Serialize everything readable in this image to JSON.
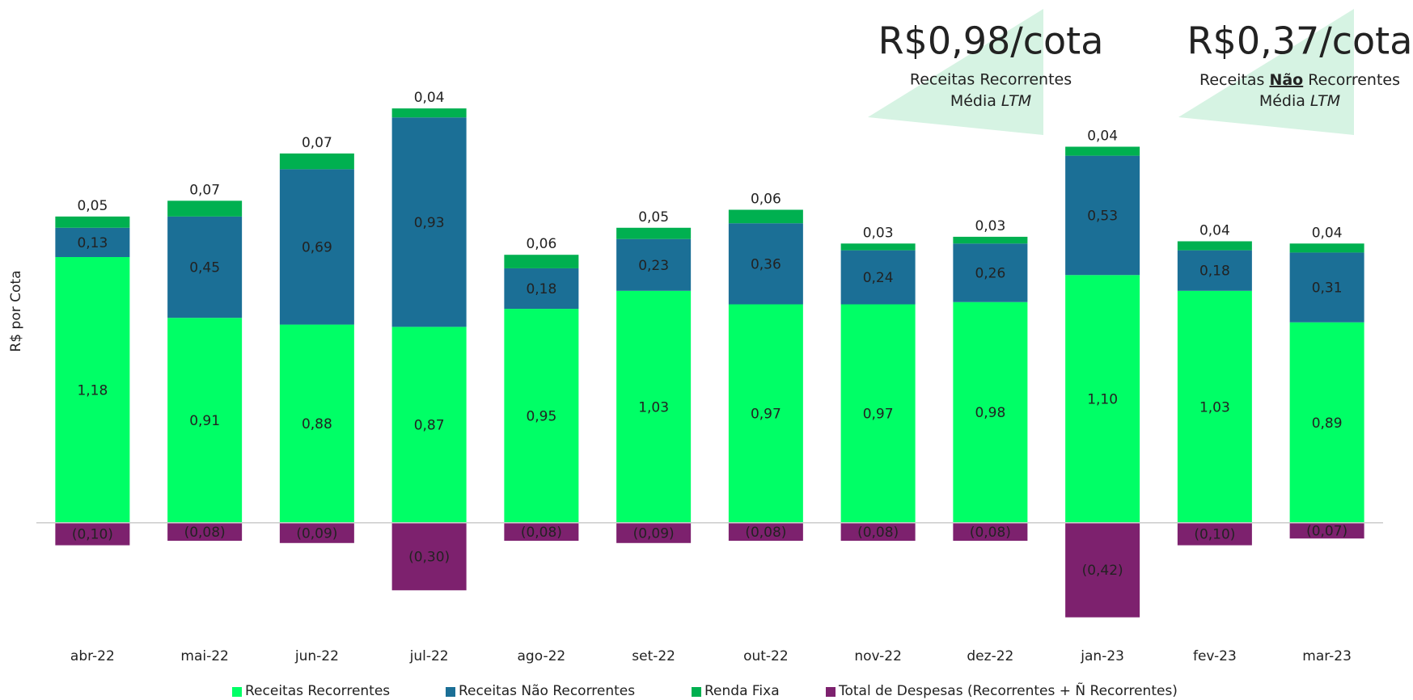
{
  "chart_data": {
    "type": "stacked_bar",
    "y_label": "R$ por Cota",
    "categories": [
      "abr-22",
      "mai-22",
      "jun-22",
      "jul-22",
      "ago-22",
      "set-22",
      "out-22",
      "nov-22",
      "dez-22",
      "jan-23",
      "fev-23",
      "mar-23"
    ],
    "series": [
      {
        "name": "Receitas Recorrentes",
        "color": "#00ff66",
        "label_color": "#222222",
        "values": [
          1.18,
          0.91,
          0.88,
          0.87,
          0.95,
          1.03,
          0.97,
          0.97,
          0.98,
          1.1,
          1.03,
          0.89
        ],
        "value_labels": [
          "1,18",
          "0,91",
          "0,88",
          "0,87",
          "0,95",
          "1,03",
          "0,97",
          "0,97",
          "0,98",
          "1,10",
          "1,03",
          "0,89"
        ]
      },
      {
        "name": "Receitas Não Recorrentes",
        "color": "#1b6f96",
        "label_color": "#ffffff",
        "values": [
          0.13,
          0.45,
          0.69,
          0.93,
          0.18,
          0.23,
          0.36,
          0.24,
          0.26,
          0.53,
          0.18,
          0.31
        ],
        "value_labels": [
          "0,13",
          "0,45",
          "0,69",
          "0,93",
          "0,18",
          "0,23",
          "0,36",
          "0,24",
          "0,26",
          "0,53",
          "0,18",
          "0,31"
        ]
      },
      {
        "name": "Renda Fixa",
        "color": "#00b050",
        "label_color": "#222222",
        "values": [
          0.05,
          0.07,
          0.07,
          0.04,
          0.06,
          0.05,
          0.06,
          0.03,
          0.03,
          0.04,
          0.04,
          0.04
        ],
        "value_labels": [
          "0,05",
          "0,07",
          "0,07",
          "0,04",
          "0,06",
          "0,05",
          "0,06",
          "0,03",
          "0,03",
          "0,04",
          "0,04",
          "0,04"
        ]
      },
      {
        "name": "Total de Despesas (Recorrentes + Ñ Recorrentes)",
        "color": "#7d216e",
        "label_color": "#ffffff",
        "values": [
          -0.1,
          -0.08,
          -0.09,
          -0.3,
          -0.08,
          -0.09,
          -0.08,
          -0.08,
          -0.08,
          -0.42,
          -0.1,
          -0.07
        ],
        "value_labels": [
          "(0,10)",
          "(0,08)",
          "(0,09)",
          "(0,30)",
          "(0,08)",
          "(0,09)",
          "(0,08)",
          "(0,08)",
          "(0,08)",
          "(0,42)",
          "(0,10)",
          "(0,07)"
        ]
      }
    ],
    "ylim": [
      -0.5,
      2.3
    ],
    "annotations": [
      {
        "headline": "R$0,98/cota",
        "line1": [
          "Receitas Recorrentes"
        ],
        "line2": [
          "Média",
          "LTM"
        ]
      },
      {
        "headline": "R$0,37/cota",
        "line1": [
          "Receitas",
          "Não",
          "Recorrentes"
        ],
        "line2": [
          "Média",
          "LTM"
        ]
      }
    ]
  }
}
